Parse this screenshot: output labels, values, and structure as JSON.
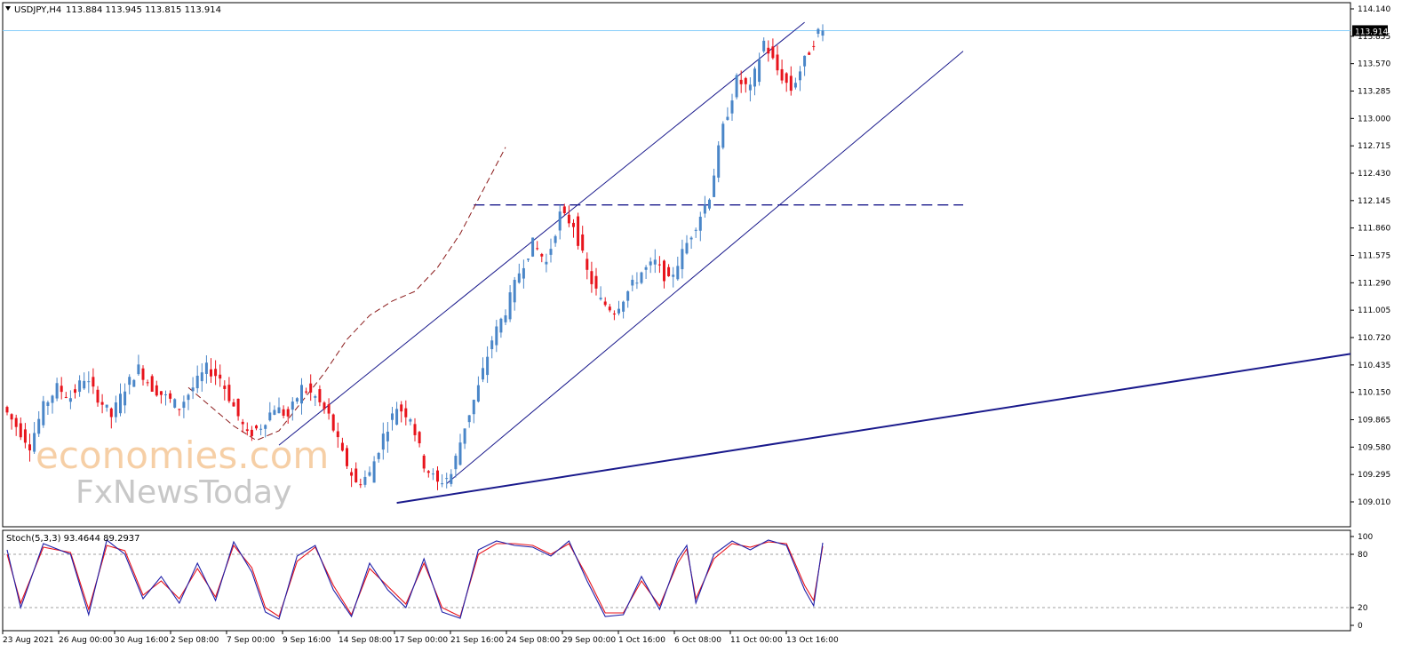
{
  "header": {
    "symbol_label": "USDJPY,H4",
    "ohlc_label": "113.884 113.945 113.815 113.914"
  },
  "indicator": {
    "label": "Stoch(5,3,3) 93.4644 89.2937",
    "levels": [
      "100",
      "80",
      "20",
      "0"
    ]
  },
  "watermark": {
    "line1": "economies.com",
    "line2": "FxNewsToday"
  },
  "colors": {
    "up_candle": "#4a86c8",
    "down_candle": "#e8141c",
    "trendline": "#1a1a8c",
    "ma_line": "#8b1a1a",
    "stoch_main": "#1f1fa8",
    "stoch_signal": "#e8141c",
    "price_line": "#87cefa",
    "grid_level": "#a0a0a0"
  },
  "chart_data": {
    "type": "candlestick",
    "title": "USDJPY,H4",
    "ylim": [
      109.01,
      114.14
    ],
    "y_ticks": [
      "114.140",
      "113.855",
      "113.570",
      "113.285",
      "113.000",
      "112.715",
      "112.430",
      "112.145",
      "111.860",
      "111.575",
      "111.290",
      "111.005",
      "110.720",
      "110.435",
      "110.150",
      "109.865",
      "109.580",
      "109.295",
      "109.010"
    ],
    "x_ticks": [
      "23 Aug 2021",
      "26 Aug 00:00",
      "30 Aug 16:00",
      "2 Sep 08:00",
      "7 Sep 00:00",
      "9 Sep 16:00",
      "14 Sep 08:00",
      "17 Sep 00:00",
      "21 Sep 16:00",
      "24 Sep 08:00",
      "29 Sep 00:00",
      "1 Oct 16:00",
      "6 Oct 08:00",
      "11 Oct 00:00",
      "13 Oct 16:00"
    ],
    "current_price": "113.914",
    "price_path": [
      [
        0,
        110.0
      ],
      [
        3,
        109.8
      ],
      [
        6,
        109.6
      ],
      [
        9,
        110.0
      ],
      [
        12,
        110.2
      ],
      [
        15,
        110.1
      ],
      [
        18,
        110.3
      ],
      [
        21,
        110.1
      ],
      [
        24,
        109.9
      ],
      [
        27,
        110.2
      ],
      [
        30,
        110.4
      ],
      [
        33,
        110.2
      ],
      [
        36,
        110.1
      ],
      [
        39,
        110.0
      ],
      [
        42,
        110.2
      ],
      [
        45,
        110.4
      ],
      [
        48,
        110.3
      ],
      [
        51,
        110.0
      ],
      [
        54,
        109.7
      ],
      [
        57,
        109.8
      ],
      [
        60,
        110.0
      ],
      [
        63,
        109.9
      ],
      [
        66,
        110.2
      ],
      [
        69,
        110.1
      ],
      [
        72,
        109.9
      ],
      [
        75,
        109.5
      ],
      [
        78,
        109.2
      ],
      [
        81,
        109.3
      ],
      [
        84,
        109.7
      ],
      [
        87,
        110.0
      ],
      [
        90,
        109.9
      ],
      [
        93,
        109.4
      ],
      [
        96,
        109.2
      ],
      [
        99,
        109.3
      ],
      [
        102,
        109.8
      ],
      [
        105,
        110.2
      ],
      [
        108,
        110.7
      ],
      [
        111,
        111.0
      ],
      [
        114,
        111.4
      ],
      [
        117,
        111.7
      ],
      [
        120,
        111.5
      ],
      [
        123,
        112.0
      ],
      [
        126,
        111.9
      ],
      [
        129,
        111.4
      ],
      [
        132,
        111.1
      ],
      [
        135,
        111.0
      ],
      [
        138,
        111.2
      ],
      [
        141,
        111.4
      ],
      [
        144,
        111.5
      ],
      [
        147,
        111.3
      ],
      [
        150,
        111.6
      ],
      [
        153,
        111.9
      ],
      [
        156,
        112.2
      ],
      [
        159,
        112.9
      ],
      [
        162,
        113.4
      ],
      [
        165,
        113.3
      ],
      [
        168,
        113.8
      ],
      [
        171,
        113.5
      ],
      [
        174,
        113.3
      ],
      [
        177,
        113.6
      ],
      [
        180,
        113.9
      ]
    ],
    "moving_average": [
      [
        40,
        110.2
      ],
      [
        45,
        110.0
      ],
      [
        50,
        109.8
      ],
      [
        55,
        109.65
      ],
      [
        60,
        109.75
      ],
      [
        65,
        110.05
      ],
      [
        70,
        110.35
      ],
      [
        75,
        110.7
      ],
      [
        80,
        110.95
      ],
      [
        85,
        111.1
      ],
      [
        90,
        111.2
      ],
      [
        95,
        111.45
      ],
      [
        100,
        111.8
      ],
      [
        105,
        112.25
      ],
      [
        110,
        112.7
      ]
    ],
    "horizontal_level": 112.1,
    "trendlines": [
      {
        "name": "channel-upper",
        "from": [
          60,
          109.6
        ],
        "to": [
          176,
          114.0
        ]
      },
      {
        "name": "channel-lower",
        "from": [
          97,
          109.2
        ],
        "to": [
          211,
          113.7
        ]
      },
      {
        "name": "long-support",
        "from": [
          86,
          109.0
        ],
        "to": [
          300,
          110.55
        ]
      }
    ],
    "stochastic": {
      "main": [
        [
          0,
          85
        ],
        [
          3,
          20
        ],
        [
          8,
          92
        ],
        [
          14,
          80
        ],
        [
          18,
          12
        ],
        [
          22,
          96
        ],
        [
          26,
          80
        ],
        [
          30,
          30
        ],
        [
          34,
          55
        ],
        [
          38,
          25
        ],
        [
          42,
          70
        ],
        [
          46,
          28
        ],
        [
          50,
          94
        ],
        [
          54,
          60
        ],
        [
          57,
          15
        ],
        [
          60,
          7
        ],
        [
          64,
          78
        ],
        [
          68,
          90
        ],
        [
          72,
          40
        ],
        [
          76,
          10
        ],
        [
          80,
          70
        ],
        [
          84,
          40
        ],
        [
          88,
          20
        ],
        [
          92,
          75
        ],
        [
          96,
          15
        ],
        [
          100,
          8
        ],
        [
          104,
          85
        ],
        [
          108,
          95
        ],
        [
          112,
          90
        ],
        [
          116,
          88
        ],
        [
          120,
          78
        ],
        [
          124,
          95
        ],
        [
          128,
          50
        ],
        [
          132,
          10
        ],
        [
          136,
          12
        ],
        [
          140,
          55
        ],
        [
          144,
          18
        ],
        [
          148,
          75
        ],
        [
          150,
          90
        ],
        [
          152,
          25
        ],
        [
          156,
          80
        ],
        [
          160,
          95
        ],
        [
          164,
          85
        ],
        [
          168,
          96
        ],
        [
          172,
          90
        ],
        [
          176,
          40
        ],
        [
          178,
          22
        ],
        [
          180,
          93
        ]
      ],
      "signal": [
        [
          0,
          80
        ],
        [
          3,
          25
        ],
        [
          8,
          88
        ],
        [
          14,
          82
        ],
        [
          18,
          18
        ],
        [
          22,
          90
        ],
        [
          26,
          84
        ],
        [
          30,
          34
        ],
        [
          34,
          50
        ],
        [
          38,
          30
        ],
        [
          42,
          64
        ],
        [
          46,
          32
        ],
        [
          50,
          90
        ],
        [
          54,
          65
        ],
        [
          57,
          20
        ],
        [
          60,
          10
        ],
        [
          64,
          72
        ],
        [
          68,
          88
        ],
        [
          72,
          45
        ],
        [
          76,
          12
        ],
        [
          80,
          64
        ],
        [
          84,
          44
        ],
        [
          88,
          24
        ],
        [
          92,
          70
        ],
        [
          96,
          20
        ],
        [
          100,
          10
        ],
        [
          104,
          80
        ],
        [
          108,
          92
        ],
        [
          112,
          92
        ],
        [
          116,
          90
        ],
        [
          120,
          80
        ],
        [
          124,
          92
        ],
        [
          128,
          55
        ],
        [
          132,
          14
        ],
        [
          136,
          14
        ],
        [
          140,
          50
        ],
        [
          144,
          22
        ],
        [
          148,
          70
        ],
        [
          150,
          86
        ],
        [
          152,
          30
        ],
        [
          156,
          75
        ],
        [
          160,
          92
        ],
        [
          164,
          88
        ],
        [
          168,
          94
        ],
        [
          172,
          92
        ],
        [
          176,
          45
        ],
        [
          178,
          28
        ],
        [
          180,
          89
        ]
      ]
    }
  }
}
